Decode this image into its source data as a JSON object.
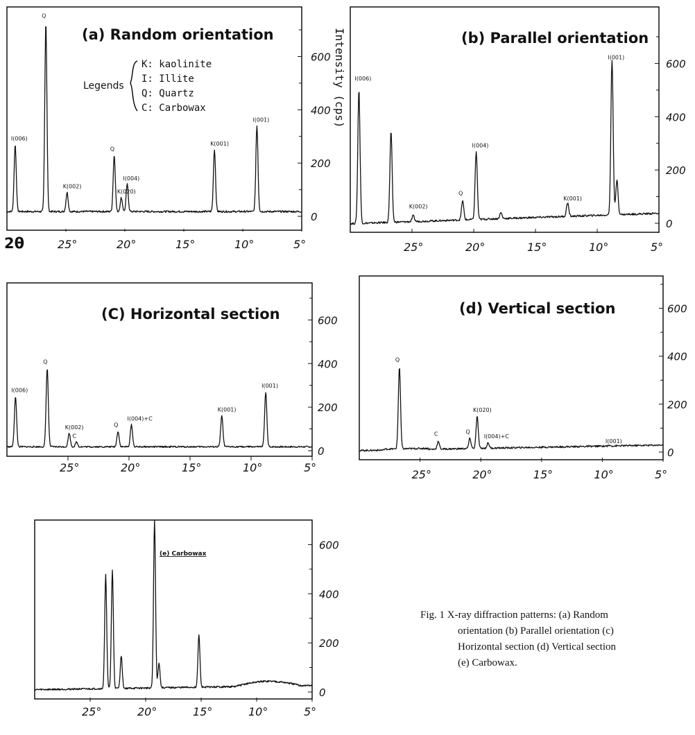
{
  "y_axis_title": "Intensity (cps)",
  "x_axis_symbol": "2θ",
  "legend": {
    "title": "Legends",
    "items": [
      "K: kaolinite",
      "I: Illite",
      "Q: Quartz",
      "C: Carbowax"
    ]
  },
  "caption": {
    "lines": [
      "Fig. 1  X-ray diffraction patterns: (a) Random",
      "orientation (b) Parallel orientation (c)",
      "Horizontal section (d) Vertical section",
      "(e) Carbowax."
    ]
  },
  "chart_data": [
    {
      "type": "line",
      "title": "(a) Random orientation",
      "x_ticks": [
        "25°",
        "20°",
        "15°",
        "10°",
        "5°"
      ],
      "y_ticks": [
        "0",
        "200",
        "400",
        "600"
      ],
      "xlim": [
        30,
        5
      ],
      "ylim": [
        0,
        760
      ],
      "peaks": [
        {
          "x": 29.3,
          "y": 270,
          "label": "I(006)"
        },
        {
          "x": 26.7,
          "y": 730,
          "label": "Q"
        },
        {
          "x": 24.9,
          "y": 90,
          "label": "K(002)"
        },
        {
          "x": 20.9,
          "y": 230,
          "label": "Q"
        },
        {
          "x": 20.3,
          "y": 70,
          "label": "K(020)"
        },
        {
          "x": 19.8,
          "y": 120,
          "label": "I(004)"
        },
        {
          "x": 12.4,
          "y": 250,
          "label": "K(001)"
        },
        {
          "x": 8.8,
          "y": 340,
          "label": "I(001)"
        }
      ]
    },
    {
      "type": "line",
      "title": "(b) Parallel orientation",
      "x_ticks": [
        "25°",
        "20°",
        "15°",
        "10°",
        "5°"
      ],
      "y_ticks": [
        "0",
        "200",
        "400",
        "600"
      ],
      "xlim": [
        30,
        5
      ],
      "ylim": [
        0,
        760
      ],
      "peaks": [
        {
          "x": 29.3,
          "y": 520,
          "label": "I(006)"
        },
        {
          "x": 26.7,
          "y": 360,
          "label": ""
        },
        {
          "x": 24.9,
          "y": 40,
          "label": "K(002)"
        },
        {
          "x": 20.9,
          "y": 90,
          "label": "Q"
        },
        {
          "x": 19.8,
          "y": 270,
          "label": "I(004)"
        },
        {
          "x": 17.8,
          "y": 40,
          "label": ""
        },
        {
          "x": 12.4,
          "y": 70,
          "label": "K(001)"
        },
        {
          "x": 8.8,
          "y": 600,
          "label": "I(001)"
        },
        {
          "x": 8.4,
          "y": 150,
          "label": ""
        }
      ]
    },
    {
      "type": "line",
      "title": "(C) Horizontal section",
      "x_ticks": [
        "25°",
        "20°",
        "15°",
        "10°",
        "5°"
      ],
      "y_ticks": [
        "0",
        "200",
        "400",
        "600"
      ],
      "xlim": [
        30,
        5
      ],
      "ylim": [
        0,
        700
      ],
      "peaks": [
        {
          "x": 29.3,
          "y": 250,
          "label": "I(006)"
        },
        {
          "x": 26.7,
          "y": 380,
          "label": "Q"
        },
        {
          "x": 24.9,
          "y": 80,
          "label": "K(002)"
        },
        {
          "x": 24.3,
          "y": 40,
          "label": "C"
        },
        {
          "x": 20.9,
          "y": 90,
          "label": "Q"
        },
        {
          "x": 19.8,
          "y": 120,
          "label": "I(004)+C"
        },
        {
          "x": 12.4,
          "y": 160,
          "label": "K(001)"
        },
        {
          "x": 8.8,
          "y": 270,
          "label": "I(001)"
        }
      ]
    },
    {
      "type": "line",
      "title": "(d) Vertical section",
      "x_ticks": [
        "25°",
        "20°",
        "15°",
        "10°",
        "5°"
      ],
      "y_ticks": [
        "0",
        "200",
        "400",
        "600"
      ],
      "xlim": [
        30,
        5
      ],
      "ylim": [
        0,
        700
      ],
      "peaks": [
        {
          "x": 26.7,
          "y": 360,
          "label": "Q"
        },
        {
          "x": 23.5,
          "y": 50,
          "label": "C"
        },
        {
          "x": 20.9,
          "y": 60,
          "label": "Q"
        },
        {
          "x": 20.3,
          "y": 150,
          "label": "K(020)"
        },
        {
          "x": 19.4,
          "y": 40,
          "label": "I(004)+C"
        },
        {
          "x": 9.4,
          "y": 20,
          "label": "I(001)"
        }
      ]
    },
    {
      "type": "line",
      "title": "(e) Carbowax",
      "x_ticks": [
        "25°",
        "20°",
        "15°",
        "10°",
        "5°"
      ],
      "y_ticks": [
        "0",
        "200",
        "400",
        "600"
      ],
      "xlim": [
        30,
        5
      ],
      "ylim": [
        0,
        700
      ],
      "peaks": [
        {
          "x": 23.6,
          "y": 480,
          "label": ""
        },
        {
          "x": 23.0,
          "y": 500,
          "label": ""
        },
        {
          "x": 22.2,
          "y": 150,
          "label": ""
        },
        {
          "x": 19.2,
          "y": 700,
          "label": ""
        },
        {
          "x": 18.8,
          "y": 120,
          "label": ""
        },
        {
          "x": 15.2,
          "y": 230,
          "label": ""
        }
      ]
    }
  ]
}
